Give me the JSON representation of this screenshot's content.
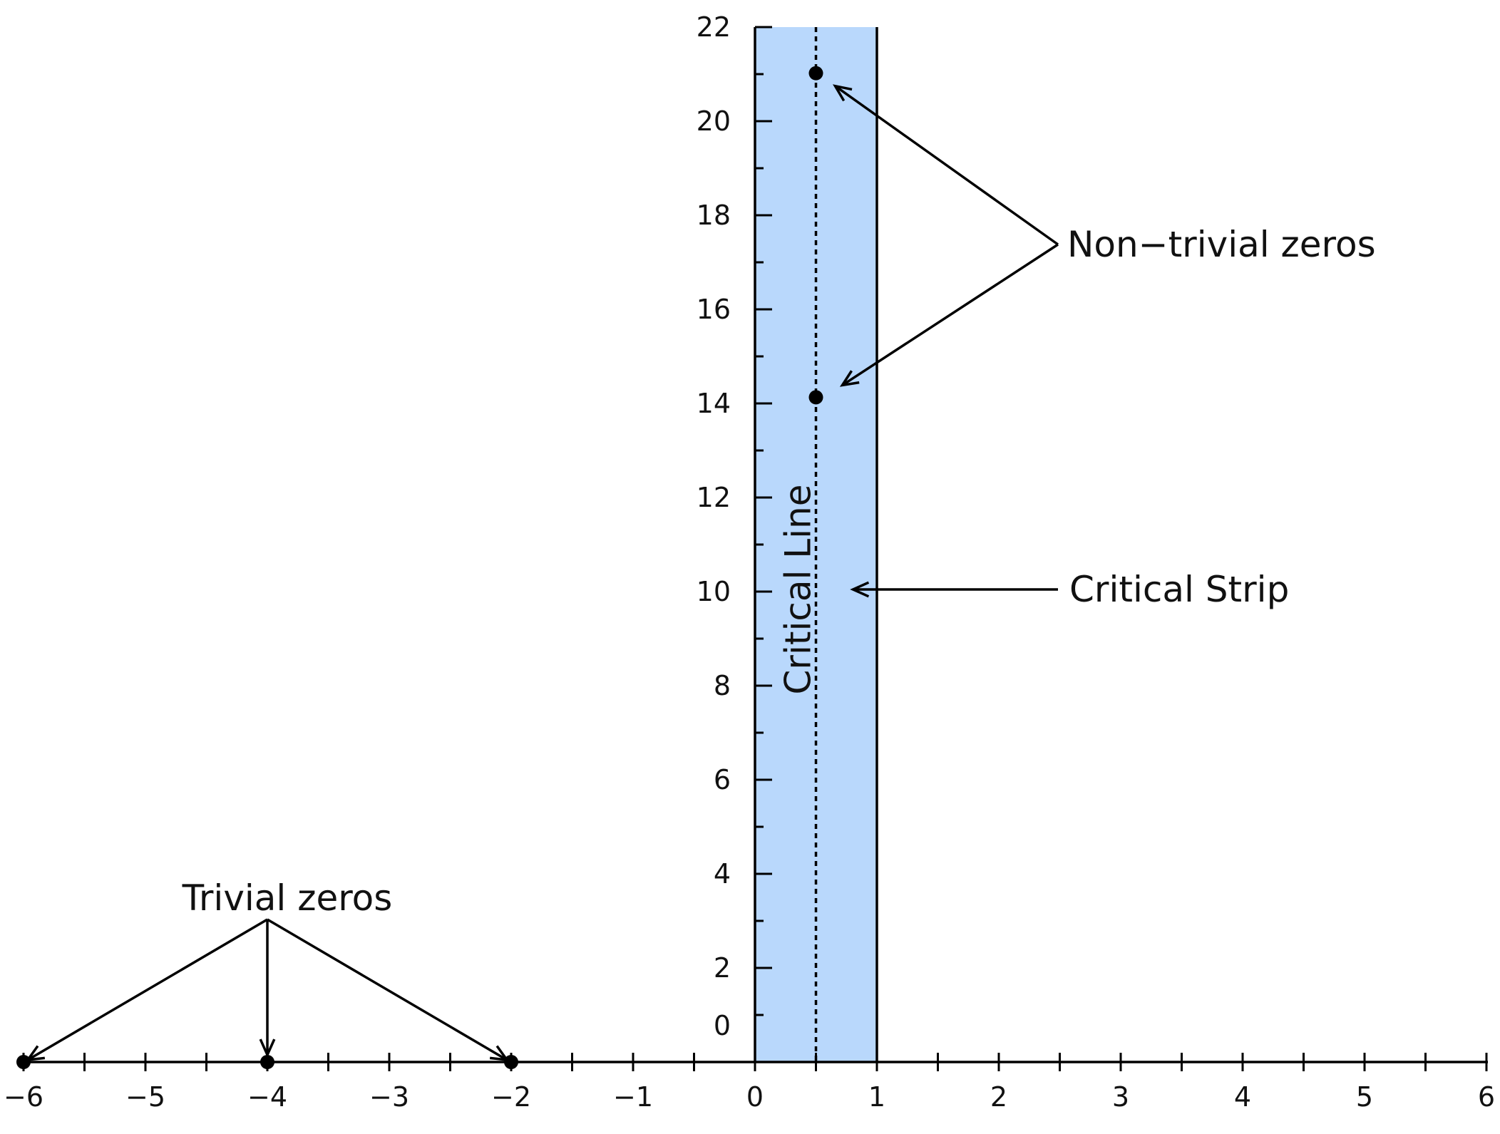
{
  "chart_data": {
    "type": "diagram",
    "x_axis": {
      "range": [
        -6,
        6
      ],
      "tick_labels": [
        "−6",
        "−5",
        "−4",
        "−3",
        "−2",
        "−1",
        "0",
        "1",
        "2",
        "3",
        "4",
        "5",
        "6"
      ],
      "minor_tick_step": 0.5
    },
    "y_axis": {
      "range": [
        0,
        22
      ],
      "tick_labels": [
        "0",
        "2",
        "4",
        "6",
        "8",
        "10",
        "12",
        "14",
        "16",
        "18",
        "20",
        "22"
      ],
      "minor_tick_step": 1
    },
    "critical_strip": {
      "x_min": 0,
      "x_max": 1,
      "fill": "#b9d8fc"
    },
    "critical_line": {
      "x": 0.5,
      "style": "dotted"
    },
    "trivial_zeros": [
      {
        "x": -6,
        "y": 0
      },
      {
        "x": -4,
        "y": 0
      },
      {
        "x": -2,
        "y": 0
      }
    ],
    "nontrivial_zeros": [
      {
        "x": 0.5,
        "y": 21.02
      },
      {
        "x": 0.5,
        "y": 14.13
      }
    ],
    "labels": {
      "trivial_zeros": "Trivial zeros",
      "nontrivial_zeros": "Non−trivial zeros",
      "critical_strip": "Critical Strip",
      "critical_line": "Critical Line"
    }
  }
}
